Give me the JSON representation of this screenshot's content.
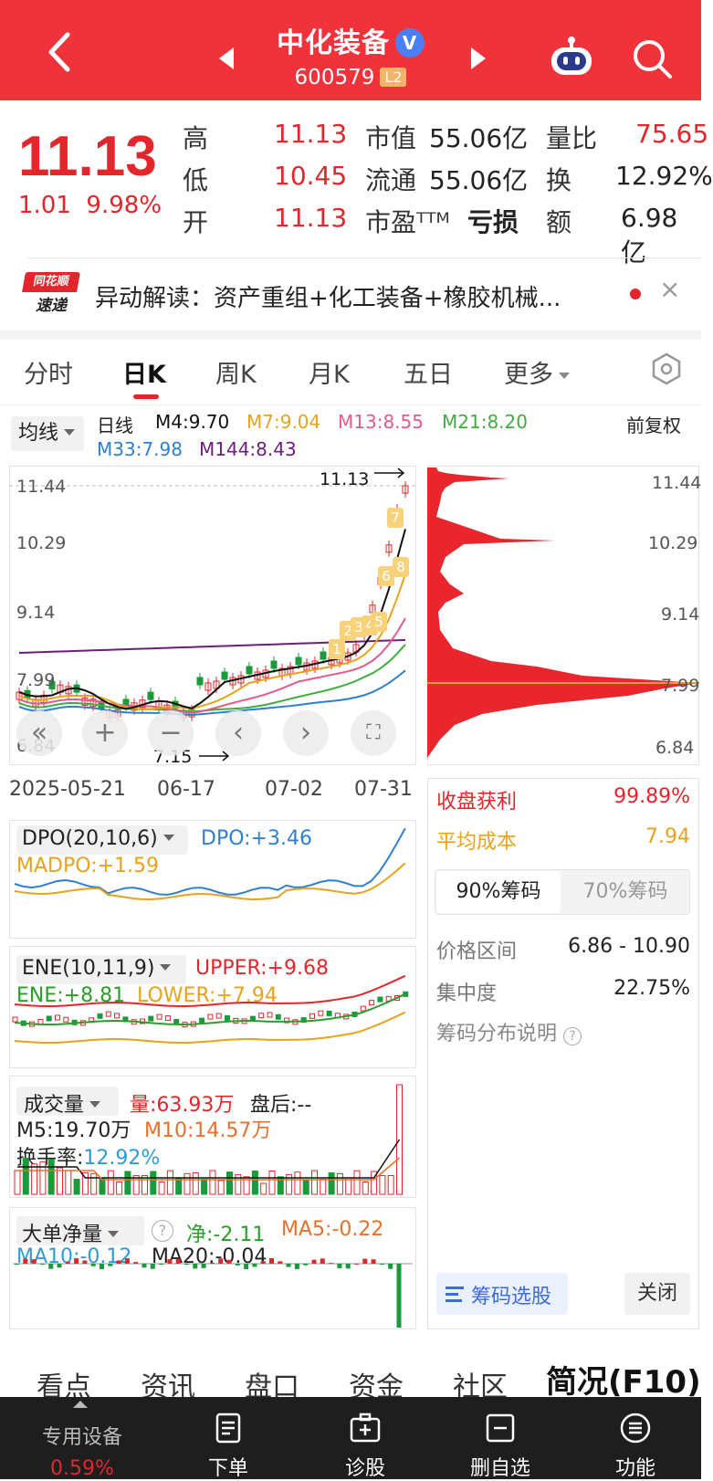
{
  "header": {
    "stock_name": "中化装备",
    "verified_badge": "V",
    "stock_code": "600579",
    "level_badge": "L2"
  },
  "quote": {
    "price": "11.13",
    "change": "1.01",
    "change_pct": "9.98%",
    "high_label": "高",
    "high": "11.13",
    "low_label": "低",
    "low": "10.45",
    "open_label": "开",
    "open": "11.13",
    "mcap_label": "市值",
    "mcap": "55.06亿",
    "float_label": "流通",
    "float": "55.06亿",
    "pe_label": "市盈ᵀᵀᴹ",
    "pe": "亏损",
    "vol_ratio_label": "量比",
    "vol_ratio": "75.65",
    "turnover_label": "换",
    "turnover": "12.92%",
    "amount_label": "额",
    "amount": "6.98亿"
  },
  "alert": {
    "logo_top": "同花顺",
    "logo_bottom": "速递",
    "text": "异动解读：资产重组+化工装备+橡胶机械...",
    "close": "×"
  },
  "tabs": [
    "分时",
    "日K",
    "周K",
    "月K",
    "五日",
    "更多"
  ],
  "active_tab": "日K",
  "ma": {
    "select_label": "均线",
    "period": "日线",
    "m4": "M4:9.70",
    "m7": "M7:9.04",
    "m13": "M13:8.55",
    "m21": "M21:8.20",
    "m33": "M33:7.98",
    "m144": "M144:8.43",
    "adjust": "前复权",
    "colors": {
      "m4": "#111111",
      "m7": "#e8a21c",
      "m13": "#e65a8a",
      "m21": "#3fae3f",
      "m33": "#2f7fd1",
      "m144": "#6b1f7a"
    }
  },
  "kline": {
    "y_ticks": [
      "11.44",
      "10.29",
      "9.14",
      "7.99",
      "6.84"
    ],
    "high_marker": "11.13",
    "low_marker": "7.15",
    "x_ticks": [
      "2025-05-21",
      "06-17",
      "07-02",
      "07-31"
    ],
    "limit_up_labels": [
      "1",
      "2",
      "3",
      "4",
      "5",
      "6",
      "7",
      "8"
    ]
  },
  "chips": {
    "y_ticks": [
      "11.44",
      "10.29",
      "9.14",
      "7.99",
      "6.84"
    ],
    "profit_label": "收盘获利",
    "profit": "99.89%",
    "avg_cost_label": "平均成本",
    "avg_cost": "7.94",
    "tab_90": "90%筹码",
    "tab_70": "70%筹码",
    "range_label": "价格区间",
    "range": "6.86 - 10.90",
    "conc_label": "集中度",
    "conc": "22.75%",
    "desc": "筹码分布说明",
    "select_btn": "筹码选股",
    "close_btn": "关闭"
  },
  "dpo": {
    "name": "DPO(20,10,6)",
    "dpo": "DPO:+3.46",
    "madpo": "MADPO:+1.59"
  },
  "ene": {
    "name": "ENE(10,11,9)",
    "upper": "UPPER:+9.68",
    "ene": "ENE:+8.81",
    "lower": "LOWER:+7.94"
  },
  "vol": {
    "name": "成交量",
    "vol": "量:63.93万",
    "after": "盘后:--",
    "m5": "M5:19.70万",
    "m10": "M10:14.57万",
    "turn_label": "换手率:",
    "turn": "12.92%"
  },
  "bignet": {
    "name": "大单净量",
    "net": "净:-2.11",
    "ma5": "MA5:-0.22",
    "ma10": "MA10:-0.12",
    "ma20": "MA20:-0.04"
  },
  "bottom_tabs": [
    "看点",
    "资讯",
    "盘口",
    "资金",
    "社区",
    "简况(F10)"
  ],
  "nav": {
    "sector": "专用设备",
    "sector_pct": "0.59%",
    "items": [
      "下单",
      "诊股",
      "删自选",
      "功能"
    ]
  }
}
